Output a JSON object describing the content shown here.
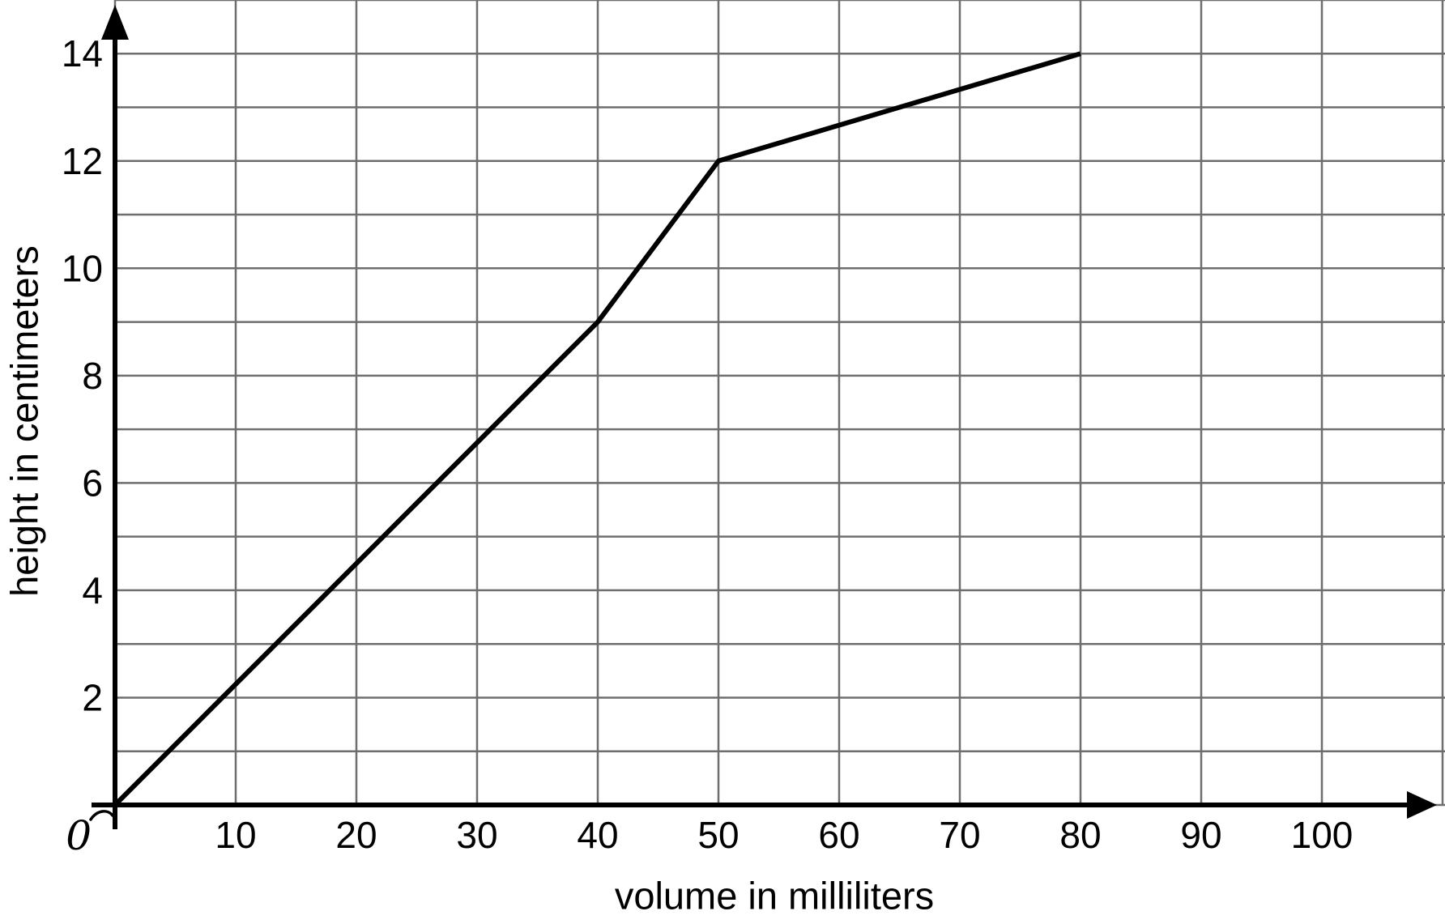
{
  "chart_data": {
    "type": "line",
    "title": "",
    "xlabel": "volume in milliliters",
    "ylabel": "height in centimeters",
    "origin_label": "0",
    "x_ticks": [
      10,
      20,
      30,
      40,
      50,
      60,
      70,
      80,
      90,
      100
    ],
    "y_ticks": [
      2,
      4,
      6,
      8,
      10,
      12,
      14
    ],
    "xlim": [
      0,
      110
    ],
    "ylim": [
      0,
      15
    ],
    "x_grid_step": 10,
    "y_grid_step": 1,
    "grid": true,
    "legend": false,
    "series": [
      {
        "points": [
          [
            0,
            0
          ],
          [
            40,
            9
          ],
          [
            50,
            12
          ],
          [
            80,
            14
          ]
        ]
      }
    ],
    "colors": {
      "background": "#ffffff",
      "grid": "#6e6e6e",
      "axis": "#000000",
      "line": "#000000",
      "text": "#000000"
    }
  }
}
